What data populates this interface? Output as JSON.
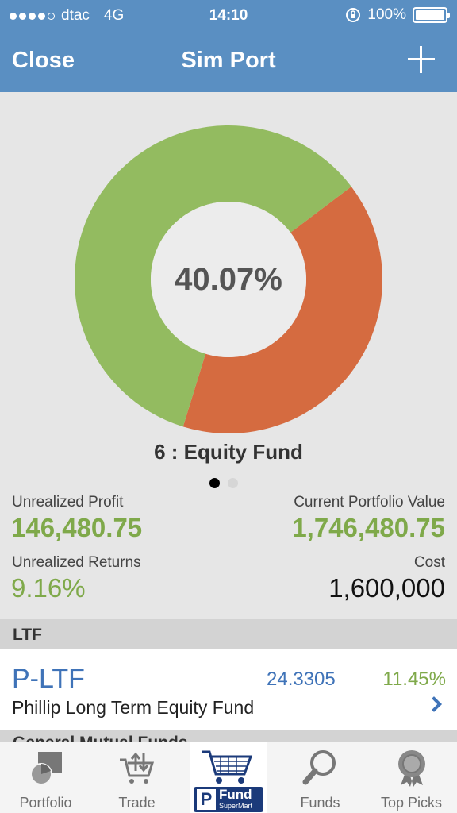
{
  "status_bar": {
    "carrier": "dtac",
    "network": "4G",
    "time": "14:10",
    "battery": "100%"
  },
  "nav": {
    "close_label": "Close",
    "title": "Sim Port",
    "add_icon": "plus-icon"
  },
  "chart_data": {
    "type": "pie",
    "donut": true,
    "center_label": "40.07%",
    "selected_label": "6 : Equity Fund",
    "slices": [
      {
        "value": 40.07,
        "color": "#d56b40"
      },
      {
        "value": 59.93,
        "color": "#93bb60"
      }
    ],
    "page_indicator": {
      "current": 1,
      "total": 2
    }
  },
  "summary": {
    "unrealized_profit_label": "Unrealized Profit",
    "unrealized_profit": "146,480.75",
    "current_value_label": "Current Portfolio Value",
    "current_value": "1,746,480.75",
    "unrealized_returns_label": "Unrealized Returns",
    "unrealized_returns": "9.16%",
    "cost_label": "Cost",
    "cost": "1,600,000"
  },
  "sections": [
    {
      "title": "LTF",
      "items": [
        {
          "code": "P-LTF",
          "nav": "24.3305",
          "return": "11.45%",
          "name": "Phillip Long Term Equity Fund"
        }
      ]
    },
    {
      "title": "General Mutual Funds"
    }
  ],
  "tabs": [
    {
      "label": "Portfolio",
      "icon": "portfolio-chart-icon"
    },
    {
      "label": "Trade",
      "icon": "cart-arrows-icon"
    },
    {
      "label": "",
      "icon": "fundsupermart-cart-logo",
      "logo_text": "Fund",
      "logo_sub": "SuperMart",
      "logo_letter": "P"
    },
    {
      "label": "Funds",
      "icon": "magnifier-icon"
    },
    {
      "label": "Top Picks",
      "icon": "ribbon-award-icon"
    }
  ],
  "colors": {
    "nav": "#5a8fc2",
    "accent_green": "#7fa94a",
    "link_blue": "#3f73b8"
  }
}
